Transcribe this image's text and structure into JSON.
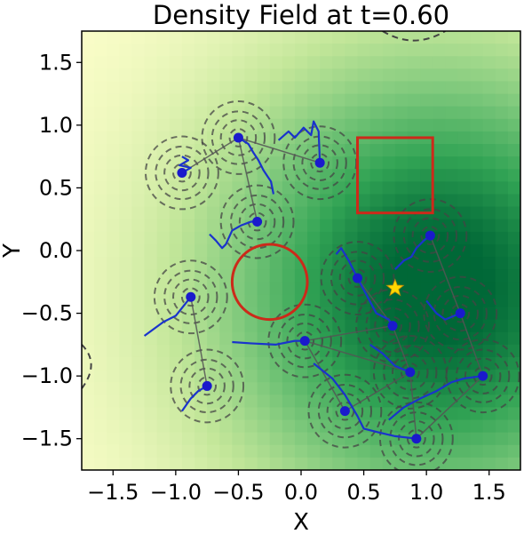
{
  "chart_data": {
    "type": "heatmap",
    "title": "Density Field at t=0.60",
    "xlabel": "X",
    "ylabel": "Y",
    "xlim": [
      -1.75,
      1.75
    ],
    "ylim": [
      -1.75,
      1.75
    ],
    "xticks": [
      -1.5,
      -1.0,
      -0.5,
      0.0,
      0.5,
      1.0,
      1.5
    ],
    "yticks": [
      -1.5,
      -1.0,
      -0.5,
      0.0,
      0.5,
      1.0,
      1.5
    ],
    "xtick_labels": [
      "−1.5",
      "−1.0",
      "−0.5",
      "0.0",
      "0.5",
      "1.0",
      "1.5"
    ],
    "ytick_labels": [
      "−1.5",
      "−1.0",
      "−0.5",
      "0.0",
      "0.5",
      "1.0",
      "1.5"
    ],
    "colormap": [
      "#ffffcc",
      "#c2e699",
      "#78c679",
      "#31a354",
      "#006837"
    ],
    "density_peak": [
      1.1,
      -0.3
    ],
    "agents": [
      [
        -0.95,
        0.62
      ],
      [
        -0.5,
        0.9
      ],
      [
        0.15,
        0.7
      ],
      [
        -0.35,
        0.23
      ],
      [
        -0.88,
        -0.37
      ],
      [
        -0.75,
        -1.08
      ],
      [
        0.03,
        -0.72
      ],
      [
        0.35,
        -1.28
      ],
      [
        0.45,
        -0.22
      ],
      [
        0.73,
        -0.6
      ],
      [
        1.03,
        0.12
      ],
      [
        0.87,
        -0.97
      ],
      [
        0.92,
        -1.5
      ],
      [
        1.27,
        -0.5
      ],
      [
        1.45,
        -1.0
      ]
    ],
    "agent_links": [
      [
        0,
        1
      ],
      [
        1,
        2
      ],
      [
        1,
        3
      ],
      [
        4,
        5
      ],
      [
        6,
        7
      ],
      [
        6,
        9
      ],
      [
        8,
        9
      ],
      [
        9,
        11
      ],
      [
        11,
        12
      ],
      [
        12,
        14
      ],
      [
        13,
        14
      ],
      [
        10,
        13
      ],
      [
        7,
        11
      ],
      [
        6,
        11
      ]
    ],
    "trails": [
      [
        [
          -0.95,
          0.75
        ],
        [
          -0.9,
          0.72
        ],
        [
          -0.97,
          0.68
        ],
        [
          -0.88,
          0.66
        ],
        [
          -0.95,
          0.62
        ]
      ],
      [
        [
          -0.5,
          0.9
        ],
        [
          -0.42,
          0.85
        ],
        [
          -0.38,
          0.78
        ],
        [
          -0.34,
          0.72
        ],
        [
          -0.3,
          0.64
        ],
        [
          -0.24,
          0.55
        ],
        [
          -0.22,
          0.45
        ]
      ],
      [
        [
          -0.18,
          0.88
        ],
        [
          -0.1,
          0.95
        ],
        [
          -0.05,
          0.9
        ],
        [
          0.02,
          0.98
        ],
        [
          0.08,
          0.92
        ],
        [
          0.1,
          1.03
        ],
        [
          0.14,
          0.95
        ],
        [
          0.15,
          0.7
        ]
      ],
      [
        [
          -0.73,
          0.13
        ],
        [
          -0.68,
          0.08
        ],
        [
          -0.63,
          0.02
        ],
        [
          -0.6,
          0.05
        ],
        [
          -0.55,
          0.16
        ],
        [
          -0.48,
          0.2
        ],
        [
          -0.4,
          0.23
        ],
        [
          -0.35,
          0.23
        ]
      ],
      [
        [
          -1.25,
          -0.68
        ],
        [
          -1.1,
          -0.57
        ],
        [
          -1.0,
          -0.52
        ],
        [
          -0.88,
          -0.37
        ]
      ],
      [
        [
          -0.95,
          -1.28
        ],
        [
          -0.88,
          -1.18
        ],
        [
          -0.82,
          -1.12
        ],
        [
          -0.75,
          -1.08
        ]
      ],
      [
        [
          -0.55,
          -0.73
        ],
        [
          -0.4,
          -0.74
        ],
        [
          -0.2,
          -0.75
        ],
        [
          -0.05,
          -0.72
        ],
        [
          0.03,
          -0.72
        ]
      ],
      [
        [
          0.1,
          -0.9
        ],
        [
          0.25,
          -1.02
        ],
        [
          0.35,
          -1.15
        ],
        [
          0.45,
          -1.32
        ],
        [
          0.5,
          -1.42
        ],
        [
          0.62,
          -1.45
        ],
        [
          0.75,
          -1.48
        ],
        [
          0.92,
          -1.5
        ]
      ],
      [
        [
          0.28,
          -0.03
        ],
        [
          0.32,
          0.02
        ],
        [
          0.38,
          -0.08
        ],
        [
          0.45,
          -0.22
        ]
      ],
      [
        [
          0.45,
          -0.22
        ],
        [
          0.52,
          -0.35
        ],
        [
          0.6,
          -0.5
        ],
        [
          0.7,
          -0.55
        ],
        [
          0.73,
          -0.6
        ]
      ],
      [
        [
          0.75,
          -0.15
        ],
        [
          0.82,
          -0.08
        ],
        [
          0.88,
          -0.05
        ],
        [
          0.92,
          0.02
        ],
        [
          0.98,
          0.08
        ],
        [
          1.03,
          0.12
        ]
      ],
      [
        [
          0.55,
          -0.75
        ],
        [
          0.65,
          -0.82
        ],
        [
          0.75,
          -0.92
        ],
        [
          0.87,
          -0.97
        ]
      ],
      [
        [
          0.7,
          -1.35
        ],
        [
          0.82,
          -1.25
        ],
        [
          0.95,
          -1.18
        ],
        [
          1.08,
          -1.12
        ],
        [
          1.2,
          -1.05
        ],
        [
          1.3,
          -1.02
        ],
        [
          1.45,
          -1.0
        ]
      ],
      [
        [
          1.0,
          -0.4
        ],
        [
          1.08,
          -0.5
        ],
        [
          1.15,
          -0.55
        ],
        [
          1.27,
          -0.5
        ]
      ]
    ],
    "obstacles": {
      "circle": {
        "cx": -0.25,
        "cy": -0.25,
        "r": 0.3,
        "color": "#cc2a1a"
      },
      "square": {
        "x0": 0.45,
        "x1": 1.05,
        "y0": 0.3,
        "y1": 0.9,
        "color": "#cc2a1a"
      }
    },
    "goal": {
      "x": 0.75,
      "y": -0.3,
      "color": "#ffd700"
    },
    "agent_color": "#1a1acc",
    "trail_color": "#1a33cc",
    "link_color": "#555555",
    "contour_color": "#444444",
    "grid": false
  }
}
